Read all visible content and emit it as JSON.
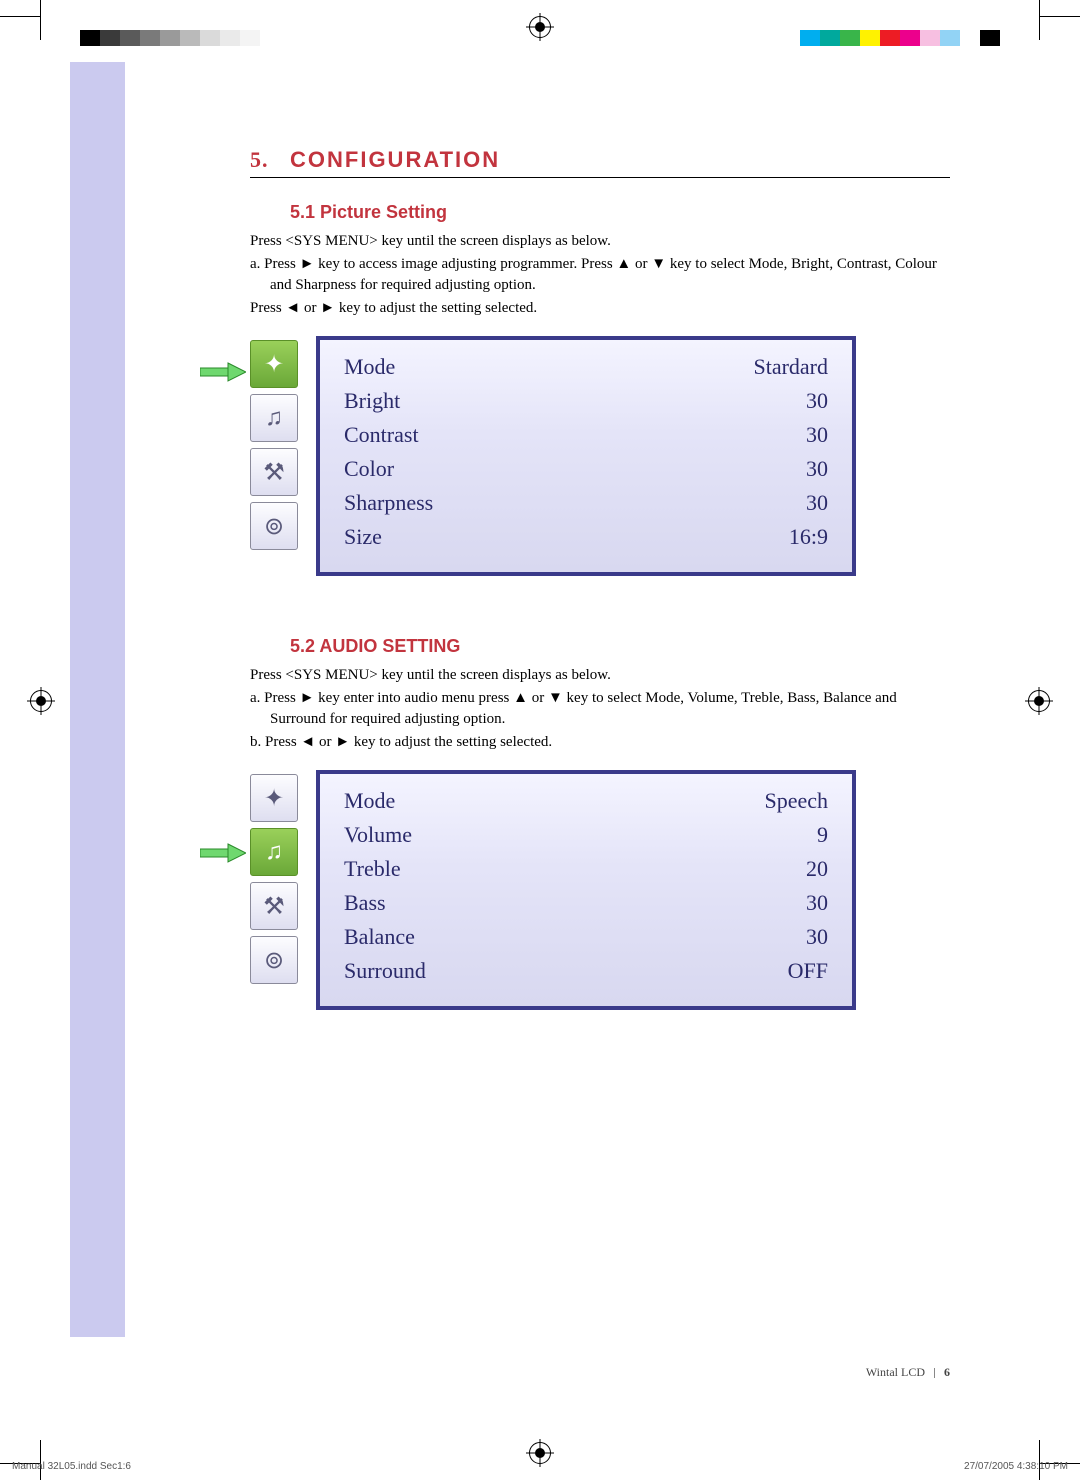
{
  "chapter": {
    "num": "5.",
    "title": "CONFIGURATION"
  },
  "s1": {
    "head": "5.1  Picture Setting",
    "p1": "Press <SYS MENU> key until the screen displays as below.",
    "p2": "a.    Press ► key to access image adjusting programmer. Press ▲ or ▼ key to select Mode, Bright, Contrast, Colour and Sharpness for required adjusting option.",
    "p3": "Press ◄ or ► key to adjust the setting selected.",
    "menu": {
      "rows": [
        {
          "label": "Mode",
          "value": "Stardard"
        },
        {
          "label": "Bright",
          "value": "30"
        },
        {
          "label": "Contrast",
          "value": "30"
        },
        {
          "label": "Color",
          "value": "30"
        },
        {
          "label": "Sharpness",
          "value": "30"
        },
        {
          "label": "Size",
          "value": "16:9"
        }
      ]
    }
  },
  "s2": {
    "head": "5.2  AUDIO SETTING",
    "p1": "Press <SYS MENU> key until the screen displays as below.",
    "p2": "a.    Press ► key enter into audio menu press ▲ or ▼ key to select Mode, Volume, Treble, Bass, Balance and Surround for required adjusting option.",
    "p3": "b.    Press ◄ or ► key to adjust the setting selected.",
    "menu": {
      "rows": [
        {
          "label": "Mode",
          "value": "Speech"
        },
        {
          "label": "Volume",
          "value": "9"
        },
        {
          "label": "Treble",
          "value": "20"
        },
        {
          "label": "Bass",
          "value": "30"
        },
        {
          "label": "Balance",
          "value": "30"
        },
        {
          "label": "Surround",
          "value": "OFF"
        }
      ]
    }
  },
  "footer": {
    "brand": "Wintal LCD",
    "page": "6"
  },
  "imprint": {
    "left": "Manual 32L05.indd   Sec1:6",
    "right": "27/07/2005   4:38:10 PM"
  },
  "grays": [
    "#000000",
    "#3a3a3a",
    "#5a5a5a",
    "#7a7a7a",
    "#9a9a9a",
    "#bababa",
    "#dadada",
    "#eaeaea",
    "#f4f4f4",
    "#ffffff"
  ],
  "colors": [
    "#00aeef",
    "#00a99d",
    "#39b54a",
    "#fff200",
    "#ed1c24",
    "#ec008c",
    "#f7bfe1",
    "#92d3f5",
    "#ffffff",
    "#000000"
  ]
}
